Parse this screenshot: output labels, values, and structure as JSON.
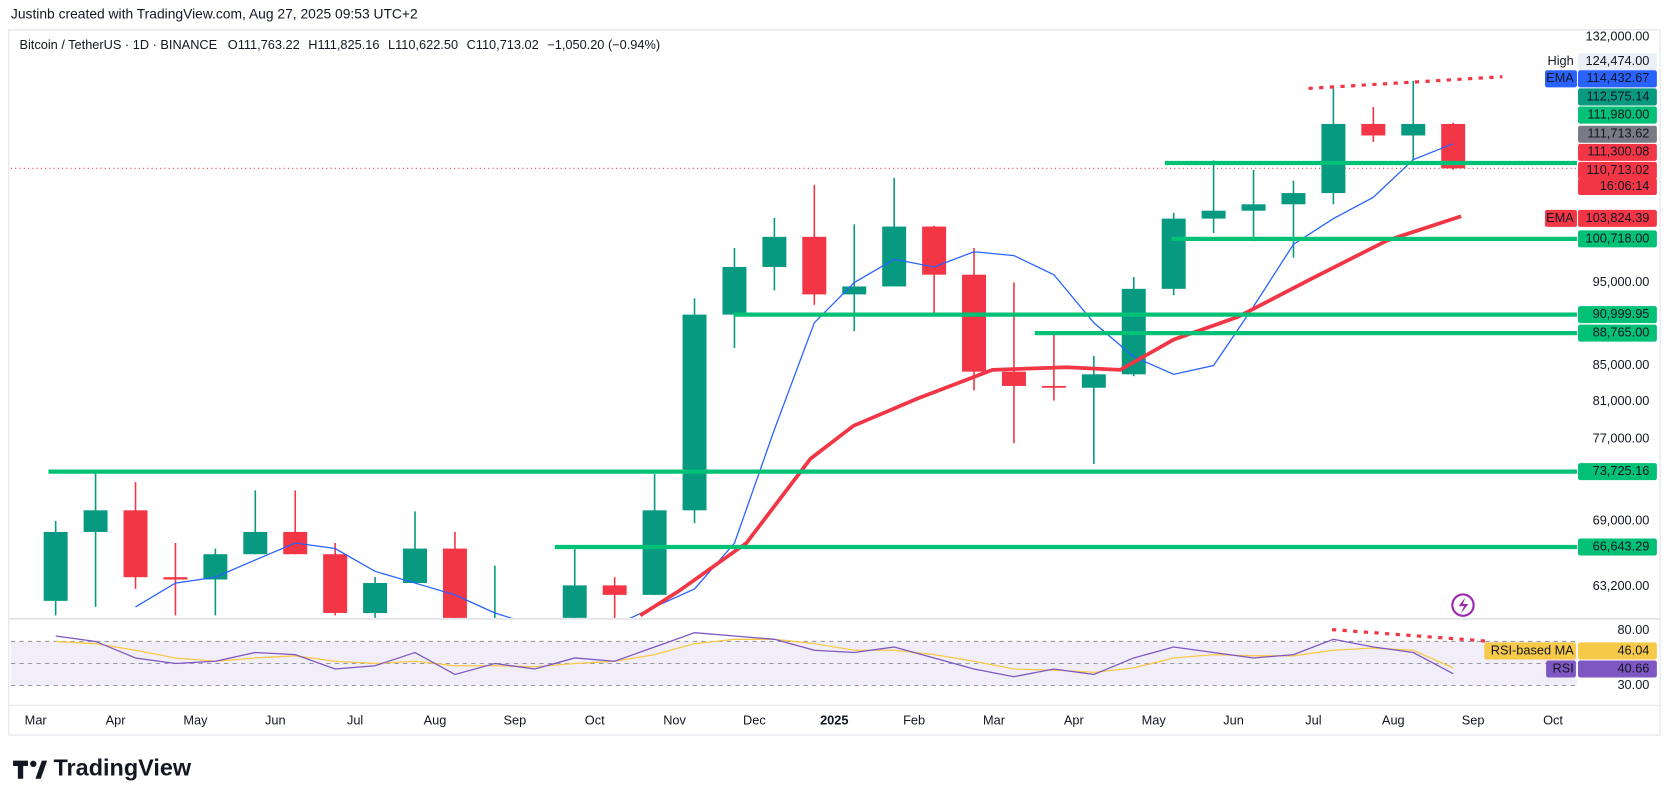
{
  "header": {
    "credit": "Justinb created with TradingView.com, Aug 27, 2025 09:53 UTC+2"
  },
  "footer": {
    "brand": "TradingView"
  },
  "chart_data": {
    "type": "candlestick",
    "title": "Bitcoin / TetherUS · 1D · BINANCE",
    "legend_values": [
      "O111,763.22",
      "H111,825.16",
      "L110,622.50",
      "C110,713.02",
      "−1,050.20 (−0.94%)"
    ],
    "log_scale": true,
    "xlim": [
      -0.31,
      19.3
    ],
    "xticks": [
      {
        "value": 0,
        "label": "Mar"
      },
      {
        "value": 1,
        "label": "Apr"
      },
      {
        "value": 2,
        "label": "May"
      },
      {
        "value": 3,
        "label": "Jun"
      },
      {
        "value": 4,
        "label": "Jul"
      },
      {
        "value": 5,
        "label": "Aug"
      },
      {
        "value": 6,
        "label": "Sep"
      },
      {
        "value": 7,
        "label": "Oct"
      },
      {
        "value": 8,
        "label": "Nov"
      },
      {
        "value": 9,
        "label": "Dec"
      },
      {
        "value": 10,
        "label": "2025"
      },
      {
        "value": 11,
        "label": "Feb"
      },
      {
        "value": 12,
        "label": "Mar"
      },
      {
        "value": 13,
        "label": "Apr"
      },
      {
        "value": 14,
        "label": "May"
      },
      {
        "value": 15,
        "label": "Jun"
      },
      {
        "value": 16,
        "label": "Jul"
      },
      {
        "value": 17,
        "label": "Aug"
      },
      {
        "value": 18,
        "label": "Sep"
      },
      {
        "value": 19,
        "label": "Oct"
      }
    ],
    "ylim": [
      60600,
      133300
    ],
    "yticks": [
      {
        "value": 132000,
        "label": "132,000.00"
      },
      {
        "value": 95000,
        "label": "95,000.00"
      },
      {
        "value": 85000,
        "label": "85,000.00"
      },
      {
        "value": 81000,
        "label": "81,000.00"
      },
      {
        "value": 77000,
        "label": "77,000.00"
      },
      {
        "value": 69000,
        "label": "69,000.00"
      },
      {
        "value": 63200,
        "label": "63,200.00"
      }
    ],
    "up_color": "#089981",
    "down_color": "#f23645",
    "candles": {
      "x": [
        0.25,
        0.75,
        1.25,
        1.75,
        2.25,
        2.75,
        3.25,
        3.75,
        4.25,
        4.75,
        5.25,
        5.75,
        6.25,
        6.75,
        7.25,
        7.75,
        8.25,
        8.75,
        9.25,
        9.75,
        10.25,
        10.75,
        11.25,
        11.75,
        12.25,
        12.75,
        13.25,
        13.75,
        14.25,
        14.75,
        15.25,
        15.75,
        16.25,
        16.75,
        17.25,
        17.75
      ],
      "open": [
        62000,
        68000,
        70000,
        64000,
        63800,
        66000,
        68000,
        66000,
        61000,
        63500,
        66500,
        59000,
        59000,
        60000,
        63300,
        62500,
        70000,
        91000,
        97000,
        101000,
        93500,
        94500,
        102400,
        96000,
        84300,
        82700,
        82500,
        84000,
        94200,
        103500,
        104600,
        105500,
        107100,
        117500,
        115700,
        117500
      ],
      "high": [
        69000,
        73700,
        72700,
        67000,
        66500,
        71900,
        71900,
        67000,
        64000,
        69900,
        68000,
        65000,
        60500,
        66500,
        64000,
        73500,
        93000,
        99500,
        103600,
        108300,
        102700,
        109300,
        102500,
        99500,
        95000,
        88700,
        86100,
        95700,
        104300,
        111900,
        110500,
        108900,
        123200,
        120200,
        124474,
        117700
      ],
      "low": [
        60800,
        61500,
        63000,
        60800,
        60800,
        66000,
        66000,
        60800,
        56000,
        63500,
        49000,
        57800,
        52500,
        60000,
        58900,
        62500,
        68800,
        87000,
        94000,
        92200,
        89000,
        94500,
        91200,
        82200,
        76600,
        81100,
        74500,
        83800,
        93400,
        101500,
        100400,
        98200,
        105500,
        114700,
        112000,
        110500
      ],
      "close": [
        68000,
        70000,
        64000,
        63800,
        66000,
        68000,
        66000,
        61000,
        63500,
        66500,
        59000,
        59000,
        60000,
        63300,
        62500,
        70000,
        91000,
        97000,
        101000,
        93500,
        94500,
        102400,
        96000,
        84300,
        82700,
        82500,
        84000,
        94200,
        103500,
        104600,
        105500,
        107100,
        117500,
        115700,
        117500,
        110713.02
      ]
    },
    "series": [
      {
        "name": "EMA",
        "color": "#2962ff",
        "x": [
          0.25,
          0.75,
          1.25,
          1.75,
          2.25,
          2.75,
          3.25,
          3.75,
          4.25,
          4.75,
          5.25,
          5.75,
          6.25,
          6.75,
          7.25,
          7.75,
          8.25,
          8.75,
          9.25,
          9.75,
          10.25,
          10.75,
          11.25,
          11.75,
          12.25,
          12.75,
          13.25,
          13.75,
          14.25,
          14.75,
          15.25,
          15.75,
          16.25,
          16.75,
          17.25,
          17.75
        ],
        "values": [
          null,
          null,
          61500,
          63500,
          64000,
          65500,
          67000,
          66500,
          64500,
          63500,
          62500,
          61000,
          60000,
          59000,
          60000,
          61500,
          63000,
          67000,
          78000,
          90000,
          95000,
          98000,
          97000,
          99000,
          98500,
          96000,
          90000,
          86000,
          84000,
          85000,
          92000,
          100000,
          103500,
          106500,
          112000,
          114432.67
        ]
      },
      {
        "name": "EMA",
        "color": "#f23645",
        "x": [
          7.57,
          8.05,
          8.9,
          9.7,
          10.24,
          11.04,
          11.98,
          12.91,
          13.58,
          14.25,
          15.05,
          15.98,
          16.92,
          17.85
        ],
        "values": [
          60800,
          62800,
          67000,
          75000,
          78400,
          81300,
          84500,
          84800,
          84500,
          88000,
          90700,
          95500,
          100500,
          103824.39
        ]
      }
    ],
    "level_color": "#00c176",
    "levels": [
      {
        "value": 111500,
        "x_start": 14.14
      },
      {
        "value": 100718,
        "x_start": 14.22,
        "label": "100,718.00"
      },
      {
        "value": 90999.95,
        "x_start": 8.74,
        "label": "90,999.95"
      },
      {
        "value": 88765,
        "x_start": 12.51,
        "label": "88,765.00"
      },
      {
        "value": 73725.16,
        "x_start": 0.16,
        "label": "73,725.16"
      },
      {
        "value": 66643.29,
        "x_start": 6.5,
        "label": "66,643.29"
      }
    ],
    "price_labels": [
      {
        "tag": "High",
        "label": "124,474.00",
        "color": "#e9eef7",
        "text_color": "#131722"
      },
      {
        "tag": "EMA",
        "label": "114,432.67",
        "color": "#2962ff",
        "text_color": "#ffffff"
      },
      {
        "label": "112,575.14",
        "color": "#089981",
        "text_color": "#ffffff"
      },
      {
        "label": "111,980.00",
        "color": "#00c176",
        "text_color": "#131722"
      },
      {
        "label": "111,713.62",
        "color": "#787b86",
        "text_color": "#ffffff"
      },
      {
        "label": "111,300.08",
        "color": "#f23645",
        "text_color": "#ffffff"
      },
      {
        "label": "110,713.02",
        "color": "#f23645",
        "text_color": "#ffffff"
      },
      {
        "label": "16:06:14",
        "color": "#f23645",
        "text_color": "#ffffff"
      },
      {
        "tag": "EMA",
        "label": "103,824.39",
        "color": "#f23645",
        "text_color": "#ffffff"
      }
    ],
    "rsi": {
      "ylim": [
        14,
        88.5
      ],
      "yticks": [
        {
          "value": 80,
          "label": "80.00"
        },
        {
          "value": 30,
          "label": "30.00"
        }
      ],
      "band": [
        30,
        70
      ],
      "midline": 50,
      "series": [
        {
          "name": "RSI-based MA",
          "color": "#f7c948",
          "value_label": "46.04",
          "values": [
            70,
            68,
            62,
            55,
            52,
            55,
            57,
            52,
            50,
            52,
            48,
            48,
            47,
            50,
            52,
            58,
            68,
            72,
            72,
            68,
            62,
            62,
            58,
            52,
            45,
            44,
            42,
            46,
            55,
            58,
            57,
            57,
            62,
            64,
            62,
            46.04
          ]
        },
        {
          "name": "RSI",
          "color": "#7e57c2",
          "value_label": "40.66",
          "values": [
            75,
            70,
            55,
            50,
            52,
            60,
            58,
            45,
            48,
            60,
            40,
            50,
            45,
            55,
            52,
            65,
            78,
            75,
            72,
            62,
            60,
            65,
            55,
            45,
            38,
            45,
            40,
            55,
            65,
            60,
            55,
            58,
            72,
            65,
            60,
            40.66
          ]
        }
      ]
    }
  }
}
